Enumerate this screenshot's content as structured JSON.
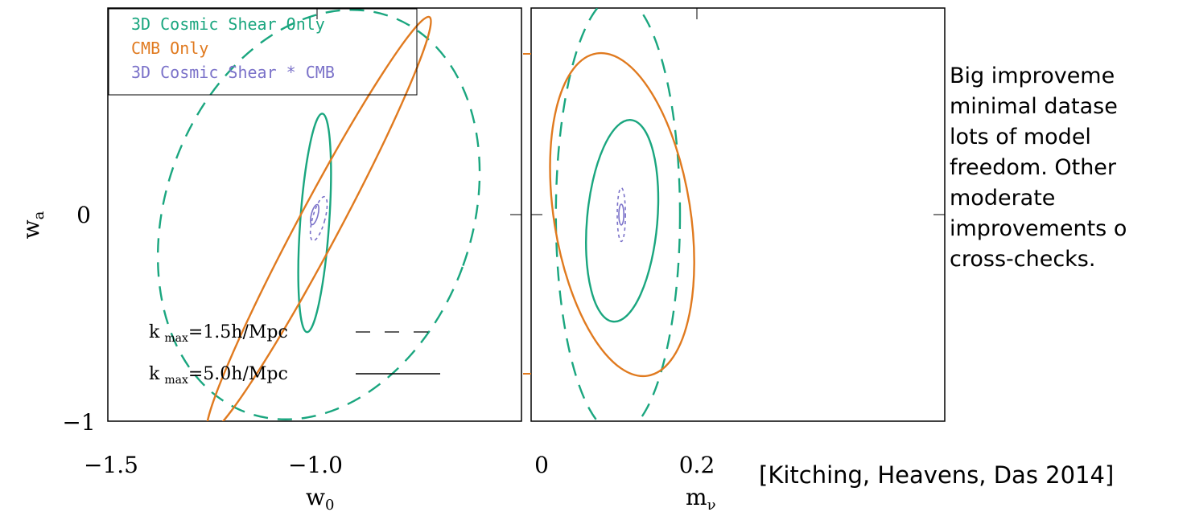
{
  "colors": {
    "shear": "#1aa67f",
    "cmb": "#e07a1f",
    "combined": "#7b72c9",
    "axis": "#000000"
  },
  "legend": {
    "shear": "3D Cosmic Shear Only",
    "cmb": "CMB Only",
    "combined": "3D Cosmic Shear * CMB"
  },
  "kmax_legend": {
    "dashed": {
      "k": "k",
      "sub": "max",
      "rest": "=1.5h/Mpc"
    },
    "solid": {
      "k": "k",
      "sub": "max",
      "rest": "=5.0h/Mpc"
    }
  },
  "side_text": [
    "Big improveme",
    "minimal datase",
    "lots of model",
    "freedom. Other",
    "moderate",
    "improvements o",
    "cross-checks."
  ],
  "citation": "[Kitching, Heavens, Das 2014]",
  "chart_data": [
    {
      "type": "scatter",
      "panel": "left",
      "xlabel": "w",
      "xlabel_sub": "0",
      "ylabel": "w",
      "ylabel_sub": "a",
      "xlim": [
        -1.5,
        -0.5
      ],
      "ylim": [
        -1.0,
        1.0
      ],
      "xticks": [
        {
          "value": -1.5,
          "label": "−1.5"
        },
        {
          "value": -1.0,
          "label": "−1.0"
        }
      ],
      "yticks": [
        {
          "value": 0,
          "label": "0"
        },
        {
          "value": -1,
          "label": "−1"
        }
      ],
      "series": [
        {
          "name": "3D Cosmic Shear Only (k max=1.5h/Mpc)",
          "style": "dashed",
          "color": "shear",
          "center": [
            -0.99,
            0.0
          ],
          "rx": 0.37,
          "ry": 1.02,
          "angle": 20
        },
        {
          "name": "3D Cosmic Shear Only (k max=5.0h/Mpc)",
          "style": "solid",
          "color": "shear",
          "center": [
            -1.0,
            -0.04
          ],
          "rx": 0.035,
          "ry": 0.53,
          "angle": 4
        },
        {
          "name": "CMB Only",
          "style": "solid",
          "color": "cmb",
          "center": [
            -0.99,
            -0.05
          ],
          "rx": 0.05,
          "ry": 1.14,
          "angle": 28
        },
        {
          "name": "3D Cosmic Shear * CMB",
          "style": "dashed",
          "color": "combined",
          "center": [
            -0.99,
            -0.02
          ],
          "rx": 0.015,
          "ry": 0.11,
          "angle": 15
        },
        {
          "name": "3D Cosmic Shear * CMB",
          "style": "solid",
          "color": "combined",
          "center": [
            -1.0,
            0.0
          ],
          "rx": 0.008,
          "ry": 0.05,
          "angle": 15
        }
      ]
    },
    {
      "type": "scatter",
      "panel": "right",
      "xlabel": "m",
      "xlabel_sub": "ν",
      "ylabel": "",
      "xlim": [
        -0.02,
        0.98
      ],
      "ylim": [
        -1.0,
        1.0
      ],
      "xticks": [
        {
          "value": 0,
          "label": "0"
        },
        {
          "value": 0.2,
          "label": "0.2"
        }
      ],
      "yticks": [],
      "series": [
        {
          "name": "3D Cosmic Shear Only (k max=1.5h/Mpc)",
          "style": "dashed",
          "color": "shear",
          "center": [
            0.19,
            0.0
          ],
          "rx": 0.15,
          "ry": 1.06,
          "angle": 0
        },
        {
          "name": "3D Cosmic Shear Only (k max=5.0h/Mpc)",
          "style": "solid",
          "color": "shear",
          "center": [
            0.2,
            -0.03
          ],
          "rx": 0.085,
          "ry": 0.49,
          "angle": 5
        },
        {
          "name": "CMB Only",
          "style": "solid",
          "color": "cmb",
          "center": [
            0.2,
            0.0
          ],
          "rx": 0.165,
          "ry": 0.79,
          "angle": -9
        },
        {
          "name": "3D Cosmic Shear * CMB",
          "style": "dashed",
          "color": "combined",
          "center": [
            0.198,
            0.0
          ],
          "rx": 0.01,
          "ry": 0.13,
          "angle": 0
        },
        {
          "name": "3D Cosmic Shear * CMB",
          "style": "solid",
          "color": "combined",
          "center": [
            0.198,
            0.0
          ],
          "rx": 0.006,
          "ry": 0.05,
          "angle": 0
        }
      ]
    }
  ]
}
